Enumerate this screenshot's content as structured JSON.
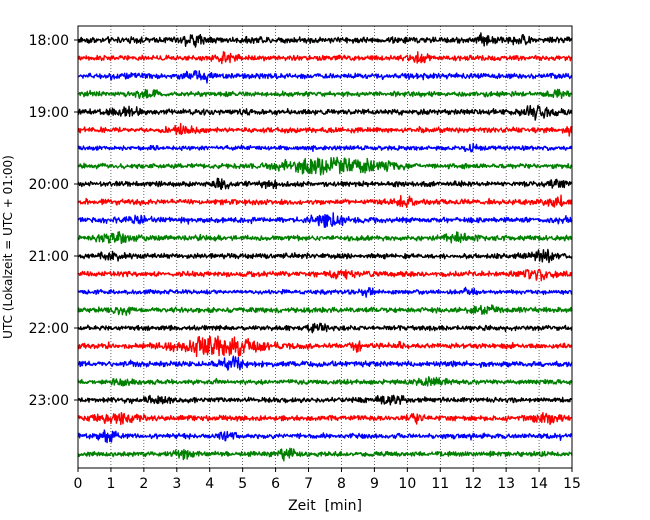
{
  "chart_data": {
    "type": "seismogram",
    "title": "",
    "xlabel": "Zeit  [min]",
    "ylabel": "UTC (Lokalzeit = UTC + 01:00)",
    "xlim": [
      0,
      15
    ],
    "x_ticks": [
      0,
      1,
      2,
      3,
      4,
      5,
      6,
      7,
      8,
      9,
      10,
      11,
      12,
      13,
      14,
      15
    ],
    "x_tick_labels": [
      "0",
      "1",
      "2",
      "3",
      "4",
      "5",
      "6",
      "7",
      "8",
      "9",
      "10",
      "11",
      "12",
      "13",
      "14",
      "15"
    ],
    "trace_interval_min": 15,
    "first_trace_time": "18:00",
    "last_trace_time": "23:45",
    "y_tick_labels": [
      "18:00",
      "19:00",
      "20:00",
      "21:00",
      "22:00",
      "23:00"
    ],
    "trace_colors": [
      "#000000",
      "#ff0000",
      "#0000ff",
      "#008000"
    ],
    "grid": "vertical dotted",
    "traces": [
      {
        "start": "18:00",
        "color": "#000000",
        "noise": 0.35,
        "events": [
          {
            "t": 3.5,
            "amp": 0.55,
            "w": 0.25
          },
          {
            "t": 12.3,
            "amp": 0.4,
            "w": 0.3
          },
          {
            "t": 13.5,
            "amp": 0.35,
            "w": 0.2
          }
        ]
      },
      {
        "start": "18:15",
        "color": "#ff0000",
        "noise": 0.3,
        "events": [
          {
            "t": 4.5,
            "amp": 0.45,
            "w": 0.2
          },
          {
            "t": 10.4,
            "amp": 0.5,
            "w": 0.15
          }
        ]
      },
      {
        "start": "18:30",
        "color": "#0000ff",
        "noise": 0.3,
        "events": [
          {
            "t": 3.6,
            "amp": 0.45,
            "w": 0.3
          },
          {
            "t": 1.3,
            "amp": 0.3,
            "w": 0.2
          }
        ]
      },
      {
        "start": "18:45",
        "color": "#008000",
        "noise": 0.28,
        "events": [
          {
            "t": 2.1,
            "amp": 0.35,
            "w": 0.3
          },
          {
            "t": 14.6,
            "amp": 0.3,
            "w": 0.2
          }
        ]
      },
      {
        "start": "19:00",
        "color": "#000000",
        "noise": 0.32,
        "events": [
          {
            "t": 1.4,
            "amp": 0.45,
            "w": 0.3
          },
          {
            "t": 14.0,
            "amp": 0.6,
            "w": 0.35
          }
        ]
      },
      {
        "start": "19:15",
        "color": "#ff0000",
        "noise": 0.3,
        "events": [
          {
            "t": 3.1,
            "amp": 0.4,
            "w": 0.3
          },
          {
            "t": 14.9,
            "amp": 0.35,
            "w": 0.1
          }
        ]
      },
      {
        "start": "19:30",
        "color": "#0000ff",
        "noise": 0.25,
        "events": [
          {
            "t": 12.0,
            "amp": 0.3,
            "w": 0.2
          }
        ]
      },
      {
        "start": "19:45",
        "color": "#008000",
        "noise": 0.28,
        "events": [
          {
            "t": 7.8,
            "amp": 0.95,
            "w": 1.1
          }
        ]
      },
      {
        "start": "20:00",
        "color": "#000000",
        "noise": 0.3,
        "events": [
          {
            "t": 4.3,
            "amp": 0.45,
            "w": 0.2
          },
          {
            "t": 5.8,
            "amp": 0.4,
            "w": 0.2
          },
          {
            "t": 14.5,
            "amp": 0.35,
            "w": 0.15
          }
        ]
      },
      {
        "start": "20:15",
        "color": "#ff0000",
        "noise": 0.3,
        "events": [
          {
            "t": 9.9,
            "amp": 0.5,
            "w": 0.25
          },
          {
            "t": 14.5,
            "amp": 0.4,
            "w": 0.2
          }
        ]
      },
      {
        "start": "20:30",
        "color": "#0000ff",
        "noise": 0.3,
        "events": [
          {
            "t": 7.6,
            "amp": 0.5,
            "w": 0.4
          },
          {
            "t": 2.0,
            "amp": 0.35,
            "w": 0.3
          },
          {
            "t": 14.8,
            "amp": 0.3,
            "w": 0.15
          }
        ]
      },
      {
        "start": "20:45",
        "color": "#008000",
        "noise": 0.3,
        "events": [
          {
            "t": 1.2,
            "amp": 0.45,
            "w": 0.4
          },
          {
            "t": 11.5,
            "amp": 0.35,
            "w": 0.3
          }
        ]
      },
      {
        "start": "21:00",
        "color": "#000000",
        "noise": 0.3,
        "events": [
          {
            "t": 14.1,
            "amp": 0.45,
            "w": 0.3
          },
          {
            "t": 1.0,
            "amp": 0.3,
            "w": 0.3
          }
        ]
      },
      {
        "start": "21:15",
        "color": "#ff0000",
        "noise": 0.3,
        "events": [
          {
            "t": 14.0,
            "amp": 0.45,
            "w": 0.3
          },
          {
            "t": 8.0,
            "amp": 0.3,
            "w": 0.4
          }
        ]
      },
      {
        "start": "21:30",
        "color": "#0000ff",
        "noise": 0.25,
        "events": [
          {
            "t": 8.8,
            "amp": 0.4,
            "w": 0.15
          },
          {
            "t": 11.8,
            "amp": 0.35,
            "w": 0.2
          }
        ]
      },
      {
        "start": "21:45",
        "color": "#008000",
        "noise": 0.3,
        "events": [
          {
            "t": 12.4,
            "amp": 0.35,
            "w": 0.3
          },
          {
            "t": 1.3,
            "amp": 0.3,
            "w": 0.3
          }
        ]
      },
      {
        "start": "22:00",
        "color": "#000000",
        "noise": 0.28,
        "events": [
          {
            "t": 7.3,
            "amp": 0.35,
            "w": 0.25
          }
        ]
      },
      {
        "start": "22:15",
        "color": "#ff0000",
        "noise": 0.3,
        "events": [
          {
            "t": 4.2,
            "amp": 1.0,
            "w": 0.9
          },
          {
            "t": 8.5,
            "amp": 0.4,
            "w": 0.15
          },
          {
            "t": 9.8,
            "amp": 0.4,
            "w": 0.15
          }
        ]
      },
      {
        "start": "22:30",
        "color": "#0000ff",
        "noise": 0.3,
        "events": [
          {
            "t": 4.7,
            "amp": 0.5,
            "w": 0.3
          }
        ]
      },
      {
        "start": "22:45",
        "color": "#008000",
        "noise": 0.28,
        "events": [
          {
            "t": 1.4,
            "amp": 0.4,
            "w": 0.2
          },
          {
            "t": 10.7,
            "amp": 0.35,
            "w": 0.3
          }
        ]
      },
      {
        "start": "23:00",
        "color": "#000000",
        "noise": 0.28,
        "events": [
          {
            "t": 9.5,
            "amp": 0.4,
            "w": 0.3
          },
          {
            "t": 2.4,
            "amp": 0.3,
            "w": 0.3
          }
        ]
      },
      {
        "start": "23:15",
        "color": "#ff0000",
        "noise": 0.3,
        "events": [
          {
            "t": 1.2,
            "amp": 0.45,
            "w": 0.4
          },
          {
            "t": 10.2,
            "amp": 0.4,
            "w": 0.2
          },
          {
            "t": 14.2,
            "amp": 0.45,
            "w": 0.3
          }
        ]
      },
      {
        "start": "23:30",
        "color": "#0000ff",
        "noise": 0.28,
        "events": [
          {
            "t": 0.9,
            "amp": 0.55,
            "w": 0.2
          },
          {
            "t": 4.6,
            "amp": 0.35,
            "w": 0.2
          }
        ]
      },
      {
        "start": "23:45",
        "color": "#008000",
        "noise": 0.28,
        "events": [
          {
            "t": 3.2,
            "amp": 0.45,
            "w": 0.25
          },
          {
            "t": 6.3,
            "amp": 0.45,
            "w": 0.25
          }
        ]
      }
    ]
  }
}
